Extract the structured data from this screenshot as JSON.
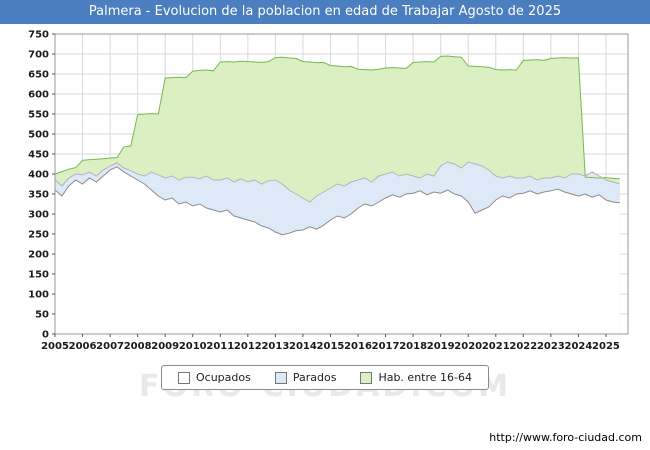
{
  "title": "Palmera - Evolucion de la poblacion en edad de Trabajar Agosto de 2025",
  "watermark": "FORO-CIUDAD.COM",
  "footer": {
    "url": "http://www.foro-ciudad.com"
  },
  "colors": {
    "titlebar": "#4a7ebe",
    "gridline": "#d9d9d9",
    "plot_border": "#999999"
  },
  "chart_data": {
    "type": "area",
    "title": "Palmera - Evolucion de la poblacion en edad de Trabajar Agosto de 2025",
    "xlabel": "",
    "ylabel": "",
    "x_start": 2005,
    "x_step": 0.25,
    "xlim": [
      2005,
      2025.8
    ],
    "ylim": [
      0,
      750
    ],
    "ytick_step": 50,
    "xticks": [
      2005,
      2006,
      2007,
      2008,
      2009,
      2010,
      2011,
      2012,
      2013,
      2014,
      2015,
      2016,
      2017,
      2018,
      2019,
      2020,
      2021,
      2022,
      2023,
      2024,
      2025
    ],
    "grid": true,
    "legend_position": "bottom",
    "series": [
      {
        "name": "Hab. entre 16-64",
        "fill": "#daf0c3",
        "stroke": "#77b84f",
        "values": [
          400,
          406,
          412,
          416,
          434,
          436,
          437,
          438,
          440,
          441,
          468,
          470,
          548,
          550,
          551,
          550,
          640,
          641,
          642,
          641,
          657,
          659,
          660,
          658,
          680,
          681,
          680,
          682,
          681,
          680,
          679,
          681,
          691,
          692,
          690,
          689,
          681,
          680,
          678,
          679,
          671,
          670,
          668,
          669,
          662,
          661,
          660,
          662,
          665,
          666,
          665,
          664,
          679,
          680,
          681,
          680,
          694,
          695,
          693,
          692,
          670,
          669,
          668,
          667,
          661,
          660,
          661,
          660,
          684,
          685,
          686,
          684,
          689,
          690,
          691,
          690,
          690,
          392,
          391,
          390,
          391,
          389,
          388
        ]
      },
      {
        "name": "Parados",
        "fill": "#dde9f7",
        "stroke": "#b3b3b3",
        "values": [
          385,
          370,
          390,
          400,
          398,
          405,
          395,
          410,
          420,
          428,
          415,
          408,
          400,
          395,
          405,
          398,
          390,
          395,
          385,
          392,
          392,
          388,
          395,
          385,
          385,
          390,
          380,
          388,
          380,
          385,
          375,
          383,
          385,
          375,
          360,
          350,
          340,
          330,
          345,
          355,
          365,
          375,
          370,
          380,
          385,
          390,
          380,
          395,
          400,
          405,
          395,
          400,
          395,
          390,
          400,
          395,
          420,
          430,
          425,
          415,
          430,
          425,
          420,
          410,
          395,
          390,
          395,
          390,
          390,
          395,
          385,
          390,
          390,
          395,
          390,
          400,
          400,
          395,
          405,
          395,
          385,
          380,
          375
        ]
      },
      {
        "name": "Ocupados",
        "fill": "#ffffff",
        "stroke": "#8c8c8c",
        "values": [
          360,
          345,
          370,
          385,
          375,
          390,
          380,
          395,
          410,
          418,
          405,
          395,
          385,
          375,
          360,
          345,
          335,
          340,
          325,
          330,
          320,
          325,
          315,
          310,
          305,
          310,
          295,
          290,
          285,
          280,
          270,
          265,
          255,
          248,
          252,
          258,
          260,
          268,
          262,
          272,
          285,
          295,
          290,
          300,
          315,
          325,
          320,
          330,
          340,
          348,
          342,
          350,
          352,
          358,
          348,
          355,
          352,
          360,
          350,
          345,
          330,
          302,
          310,
          318,
          335,
          345,
          340,
          350,
          352,
          358,
          350,
          355,
          358,
          362,
          355,
          350,
          345,
          350,
          342,
          348,
          335,
          330,
          328
        ]
      }
    ]
  }
}
